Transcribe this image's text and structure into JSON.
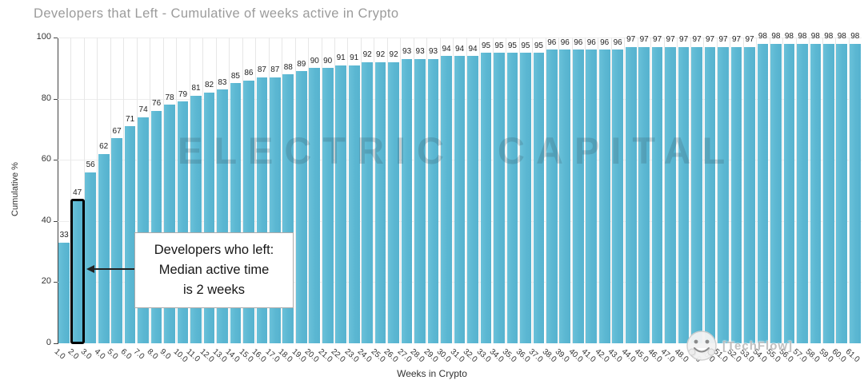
{
  "chart": {
    "title": "Developers that Left - Cumulative of weeks active in Crypto",
    "xlabel": "Weeks in Crypto",
    "ylabel": "Cumulative %"
  },
  "chart_data": {
    "type": "bar",
    "title": "Developers that Left - Cumulative of weeks active in Crypto",
    "xlabel": "Weeks in Crypto",
    "ylabel": "Cumulative %",
    "categories": [
      "1.0",
      "2.0",
      "3.0",
      "4.0",
      "5.0",
      "6.0",
      "7.0",
      "8.0",
      "9.0",
      "10.0",
      "11.0",
      "12.0",
      "13.0",
      "14.0",
      "15.0",
      "16.0",
      "17.0",
      "18.0",
      "19.0",
      "20.0",
      "21.0",
      "22.0",
      "23.0",
      "24.0",
      "25.0",
      "26.0",
      "27.0",
      "28.0",
      "29.0",
      "30.0",
      "31.0",
      "32.0",
      "33.0",
      "34.0",
      "35.0",
      "36.0",
      "37.0",
      "38.0",
      "39.0",
      "40.0",
      "41.0",
      "42.0",
      "43.0",
      "44.0",
      "45.0",
      "46.0",
      "47.0",
      "48.0",
      "49.0",
      "50.0",
      "51.0",
      "52.0",
      "53.0",
      "54.0",
      "55.0",
      "56.0",
      "57.0",
      "58.0",
      "59.0",
      "60.0",
      "61.0"
    ],
    "values": [
      33,
      47,
      56,
      62,
      67,
      71,
      74,
      76,
      78,
      79,
      81,
      82,
      83,
      85,
      86,
      87,
      87,
      88,
      89,
      90,
      90,
      91,
      91,
      92,
      92,
      92,
      93,
      93,
      93,
      94,
      94,
      94,
      95,
      95,
      95,
      95,
      95,
      96,
      96,
      96,
      96,
      96,
      96,
      97,
      97,
      97,
      97,
      97,
      97,
      97,
      97,
      97,
      97,
      98,
      98,
      98,
      98,
      98,
      98,
      98,
      98
    ],
    "ylim": [
      0,
      100
    ],
    "yticks": [
      0,
      20,
      40,
      60,
      80,
      100
    ],
    "grid": true,
    "legend": "none",
    "highlighted_bar_category": "2.0",
    "highlighted_bar_index": 1,
    "bar_value_labels_shown": true
  },
  "annotation": {
    "line1": "Developers who left:",
    "line2": "Median active time",
    "line3": "is 2 weeks",
    "points_to_category": "2.0"
  },
  "watermarks": {
    "center_text": "ELECTRIC CAPITAL",
    "bottom_right_text": "[TechFlow]",
    "bottom_right_icon": "smiley-sticker-icon"
  },
  "colors": {
    "bar": "#5bb7d2",
    "highlight_border": "#000000",
    "title_text": "#9b9b9b",
    "axis_text": "#333333",
    "gridline": "#e9e9e9",
    "annotation_border": "#ababab",
    "center_watermark": "#35505f"
  }
}
